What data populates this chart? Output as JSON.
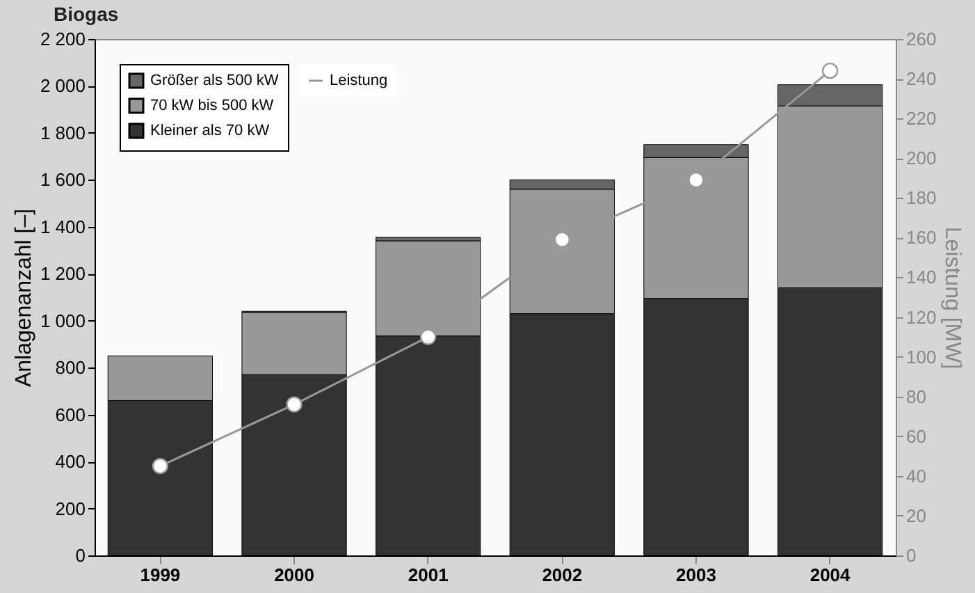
{
  "chart_data": {
    "type": "bar",
    "title": "Biogas",
    "stacked": true,
    "categories": [
      "1999",
      "2000",
      "2001",
      "2002",
      "2003",
      "2004"
    ],
    "ylabel": "Anlagenanzahl [–]",
    "y2label": "Leistung [MW]",
    "series": [
      {
        "name": "Kleiner als 70 kW",
        "color": "#333333",
        "values": [
          660,
          770,
          935,
          1030,
          1095,
          1140
        ]
      },
      {
        "name": "70 kW bis 500 kW",
        "color": "#999999",
        "values": [
          190,
          265,
          405,
          530,
          600,
          775
        ]
      },
      {
        "name": "Größer als 500 kW",
        "color": "#666666",
        "values": [
          null,
          5,
          15,
          40,
          55,
          90
        ]
      },
      {
        "name": "Leistung",
        "type": "line",
        "axis": "y2",
        "color": "#999999",
        "values": [
          45,
          76,
          110,
          159,
          189,
          244
        ]
      }
    ],
    "ylim": [
      0,
      2200
    ],
    "yticks": [
      0,
      200,
      400,
      600,
      800,
      {
        "value": 1000,
        "label": "1 000"
      },
      {
        "value": 1200,
        "label": "1 200"
      },
      {
        "value": 1400,
        "label": "1 400"
      },
      {
        "value": 1600,
        "label": "1 600"
      },
      {
        "value": 1800,
        "label": "1 800"
      },
      {
        "value": 2000,
        "label": "2 000"
      },
      {
        "value": 2200,
        "label": "2 200"
      }
    ],
    "y2lim": [
      0,
      260
    ],
    "y2ticks": [
      0,
      20,
      40,
      60,
      80,
      100,
      120,
      140,
      160,
      180,
      200,
      220,
      240,
      260
    ],
    "legend": "top left",
    "marker": "circle",
    "grid": false
  }
}
